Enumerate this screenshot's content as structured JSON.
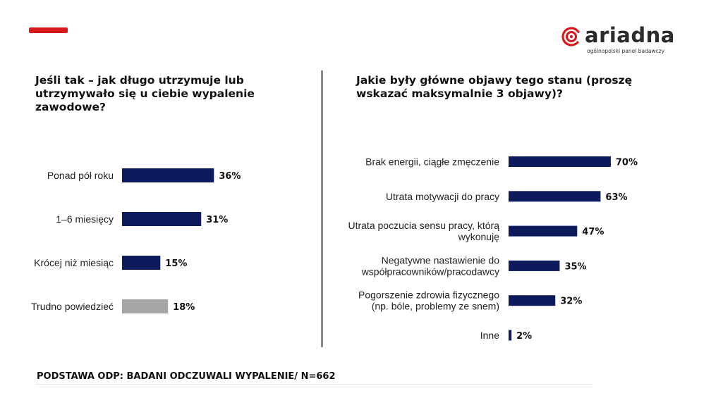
{
  "brand": {
    "name": "ariadna",
    "tagline": "ogólnopolski panel badawczy",
    "accent_color": "#d7191c",
    "bar_color": "#0d1a5c",
    "other_color": "#a6a6a6"
  },
  "left": {
    "question": "Jeśli tak – jak długo utrzymuje lub utrzymywało się u ciebie wypalenie zawodowe?"
  },
  "right": {
    "question": "Jakie były główne objawy tego stanu (proszę wskazać maksymalnie 3 objawy)?"
  },
  "footer": {
    "base": "PODSTAWA ODP: BADANI ODCZUWALI WYPALENIE/ N=662"
  },
  "chart_data": [
    {
      "type": "bar",
      "orientation": "horizontal",
      "categories": [
        "Ponad pół roku",
        "1–6 miesięcy",
        "Krócej niż miesiąc",
        "Trudno powiedzieć"
      ],
      "values": [
        36,
        31,
        15,
        18
      ],
      "value_labels": [
        "36%",
        "31%",
        "15%",
        "18%"
      ],
      "highlight": [
        "dark",
        "dark",
        "dark",
        "grey"
      ],
      "unit": "%",
      "xlim": [
        0,
        100
      ]
    },
    {
      "type": "bar",
      "orientation": "horizontal",
      "categories": [
        [
          "Brak energii, ciągłe zmęczenie"
        ],
        [
          "Utrata motywacji do pracy"
        ],
        [
          "Utrata poczucia sensu pracy, którą",
          "wykonuję"
        ],
        [
          "Negatywne nastawienie do",
          "współpracowników/pracodawcy"
        ],
        [
          "Pogorszenie zdrowia fizycznego",
          "(np. bóle, problemy ze snem)"
        ],
        [
          "Inne"
        ]
      ],
      "values": [
        70,
        63,
        47,
        35,
        32,
        2
      ],
      "value_labels": [
        "70%",
        "63%",
        "47%",
        "35%",
        "32%",
        "2%"
      ],
      "unit": "%",
      "xlim": [
        0,
        100
      ]
    }
  ]
}
